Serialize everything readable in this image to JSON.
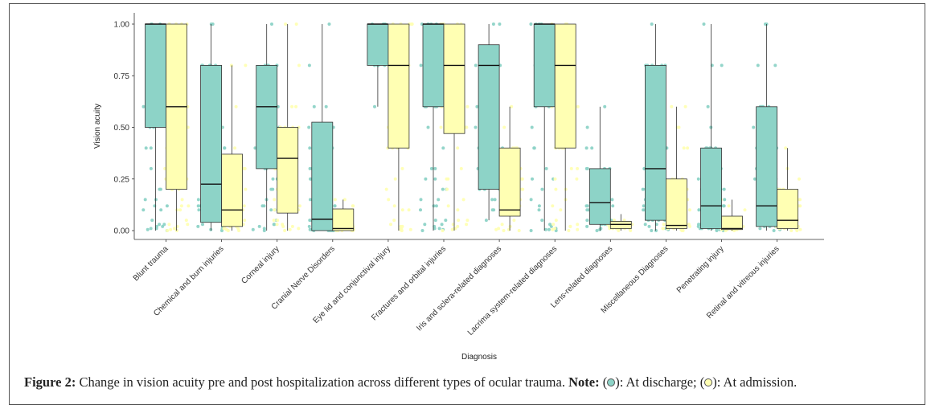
{
  "chart_data": {
    "type": "boxplot",
    "xlabel": "Diagnosis",
    "ylabel": "Vision acuity",
    "ylim": [
      0,
      1
    ],
    "yticks": [
      "0.00",
      "0.25",
      "0.50",
      "0.75",
      "1.00"
    ],
    "series": [
      {
        "name": "At discharge",
        "color": "#8dd3c7"
      },
      {
        "name": "At admission",
        "color": "#ffffb3"
      }
    ],
    "categories": [
      {
        "label": "Blunt trauma",
        "discharge": {
          "min": 0.0,
          "q1": 0.5,
          "median": 1.0,
          "q3": 1.0,
          "max": 1.0
        },
        "admission": {
          "min": 0.0,
          "q1": 0.2,
          "median": 0.6,
          "q3": 1.0,
          "max": 1.0
        }
      },
      {
        "label": "Chemical and burn injuries",
        "discharge": {
          "min": 0.0,
          "q1": 0.04,
          "median": 0.225,
          "q3": 0.8,
          "max": 1.0
        },
        "admission": {
          "min": 0.0,
          "q1": 0.02,
          "median": 0.1,
          "q3": 0.37,
          "max": 0.8
        }
      },
      {
        "label": "Corneal injury",
        "discharge": {
          "min": 0.0,
          "q1": 0.3,
          "median": 0.6,
          "q3": 0.8,
          "max": 1.0
        },
        "admission": {
          "min": 0.0,
          "q1": 0.085,
          "median": 0.35,
          "q3": 0.5,
          "max": 1.0
        }
      },
      {
        "label": "Cranial Nerve Disorders",
        "discharge": {
          "min": 0.0,
          "q1": 0.0,
          "median": 0.055,
          "q3": 0.525,
          "max": 1.0
        },
        "admission": {
          "min": 0.0,
          "q1": 0.0,
          "median": 0.01,
          "q3": 0.105,
          "max": 0.15
        }
      },
      {
        "label": "Eye lid and conjunctival injury",
        "discharge": {
          "min": 0.6,
          "q1": 0.8,
          "median": 1.0,
          "q3": 1.0,
          "max": 1.0
        },
        "admission": {
          "min": 0.0,
          "q1": 0.4,
          "median": 0.8,
          "q3": 1.0,
          "max": 1.0
        }
      },
      {
        "label": "Fractures and orbital injuries",
        "discharge": {
          "min": 0.0,
          "q1": 0.6,
          "median": 1.0,
          "q3": 1.0,
          "max": 1.0
        },
        "admission": {
          "min": 0.0,
          "q1": 0.47,
          "median": 0.8,
          "q3": 1.0,
          "max": 1.0
        }
      },
      {
        "label": "Iris and sclera-related diagnoses",
        "discharge": {
          "min": 0.05,
          "q1": 0.2,
          "median": 0.8,
          "q3": 0.9,
          "max": 1.0
        },
        "admission": {
          "min": 0.0,
          "q1": 0.07,
          "median": 0.1,
          "q3": 0.4,
          "max": 0.6
        }
      },
      {
        "label": "Lacrima system-related diagnoses",
        "discharge": {
          "min": 0.0,
          "q1": 0.6,
          "median": 1.0,
          "q3": 1.0,
          "max": 1.0
        },
        "admission": {
          "min": 0.0,
          "q1": 0.4,
          "median": 0.8,
          "q3": 1.0,
          "max": 1.0
        }
      },
      {
        "label": "Lens-related diagnoses",
        "discharge": {
          "min": 0.0,
          "q1": 0.03,
          "median": 0.135,
          "q3": 0.3,
          "max": 0.6
        },
        "admission": {
          "min": 0.0,
          "q1": 0.01,
          "median": 0.03,
          "q3": 0.045,
          "max": 0.08
        }
      },
      {
        "label": "Miscellaneous Diagnoses",
        "discharge": {
          "min": 0.0,
          "q1": 0.05,
          "median": 0.3,
          "q3": 0.8,
          "max": 1.0
        },
        "admission": {
          "min": 0.0,
          "q1": 0.01,
          "median": 0.025,
          "q3": 0.25,
          "max": 0.6
        }
      },
      {
        "label": "Penetrating injury",
        "discharge": {
          "min": 0.0,
          "q1": 0.01,
          "median": 0.12,
          "q3": 0.4,
          "max": 1.0
        },
        "admission": {
          "min": 0.0,
          "q1": 0.005,
          "median": 0.01,
          "q3": 0.07,
          "max": 0.15
        }
      },
      {
        "label": "Retinal and vitreous injuries",
        "discharge": {
          "min": 0.0,
          "q1": 0.02,
          "median": 0.12,
          "q3": 0.6,
          "max": 1.0
        },
        "admission": {
          "min": 0.0,
          "q1": 0.01,
          "median": 0.05,
          "q3": 0.2,
          "max": 0.4
        }
      }
    ]
  },
  "caption": {
    "figure_label": "Figure 2:",
    "text": " Change in vision acuity pre and post hospitalization across different types of ocular trauma. ",
    "note_label": "Note:",
    "legend_discharge_prefix": " (",
    "legend_discharge_suffix": "): At discharge; (",
    "legend_admission_suffix": "): At admission."
  }
}
